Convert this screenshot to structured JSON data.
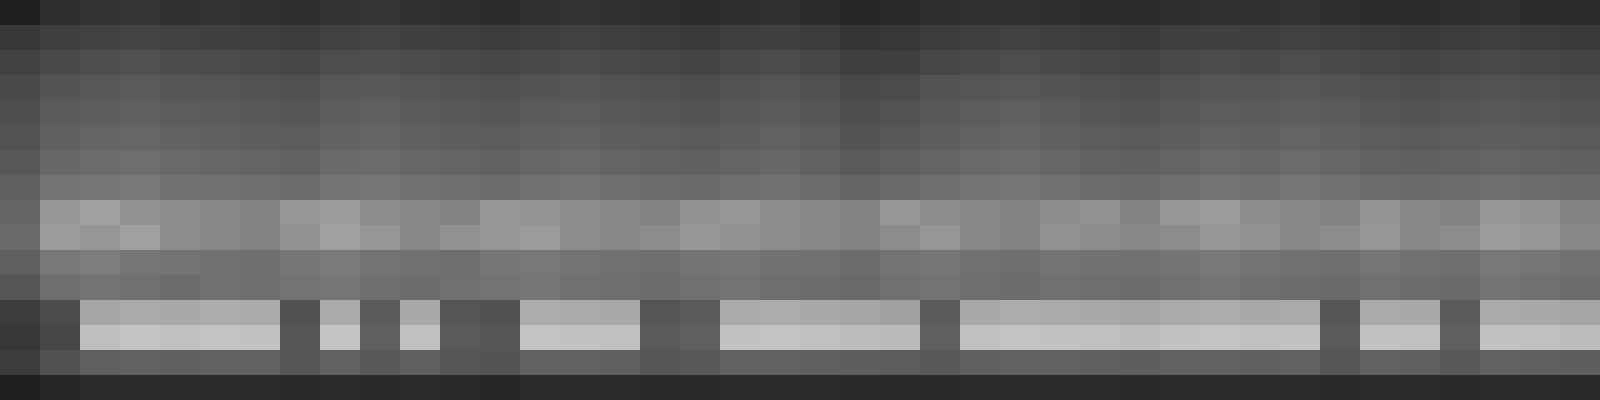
{
  "chart_data": {
    "type": "heatmap",
    "tick_labels": false,
    "value_range": [
      0,
      255
    ],
    "cells": [
      [
        30,
        45,
        50,
        52,
        48,
        50,
        47,
        45,
        50,
        52,
        49,
        46,
        44,
        48,
        50,
        47,
        45,
        43,
        46,
        49,
        44,
        38,
        40,
        45,
        47,
        49,
        46,
        44,
        42,
        45,
        47,
        48,
        50,
        46,
        44,
        43,
        45,
        47,
        44,
        42
      ],
      [
        55,
        62,
        66,
        68,
        65,
        64,
        62,
        60,
        66,
        68,
        64,
        62,
        60,
        63,
        65,
        62,
        60,
        58,
        62,
        64,
        60,
        52,
        55,
        60,
        63,
        66,
        62,
        60,
        58,
        62,
        64,
        63,
        66,
        62,
        60,
        58,
        60,
        62,
        60,
        58
      ],
      [
        65,
        74,
        78,
        80,
        76,
        75,
        72,
        70,
        77,
        79,
        75,
        72,
        70,
        74,
        76,
        72,
        70,
        68,
        72,
        75,
        70,
        62,
        64,
        70,
        74,
        77,
        73,
        70,
        68,
        72,
        75,
        74,
        77,
        73,
        70,
        68,
        70,
        72,
        70,
        68
      ],
      [
        72,
        84,
        88,
        90,
        86,
        85,
        82,
        80,
        87,
        89,
        85,
        82,
        80,
        84,
        86,
        82,
        80,
        78,
        82,
        85,
        80,
        72,
        75,
        82,
        85,
        88,
        84,
        80,
        78,
        82,
        86,
        85,
        88,
        84,
        80,
        78,
        80,
        82,
        80,
        78
      ],
      [
        78,
        90,
        94,
        96,
        92,
        90,
        88,
        86,
        93,
        95,
        90,
        88,
        86,
        90,
        92,
        88,
        86,
        84,
        88,
        91,
        86,
        78,
        82,
        88,
        92,
        95,
        90,
        86,
        84,
        88,
        92,
        90,
        94,
        90,
        86,
        84,
        86,
        88,
        86,
        84
      ],
      [
        82,
        96,
        100,
        102,
        98,
        96,
        94,
        92,
        99,
        101,
        96,
        94,
        92,
        96,
        98,
        94,
        92,
        90,
        94,
        97,
        92,
        84,
        88,
        94,
        98,
        101,
        96,
        92,
        90,
        94,
        98,
        96,
        100,
        96,
        92,
        90,
        92,
        94,
        92,
        90
      ],
      [
        88,
        104,
        108,
        110,
        105,
        103,
        100,
        98,
        106,
        108,
        103,
        100,
        98,
        103,
        105,
        100,
        98,
        96,
        100,
        104,
        98,
        90,
        95,
        100,
        105,
        108,
        103,
        98,
        96,
        100,
        105,
        103,
        107,
        103,
        98,
        96,
        98,
        100,
        98,
        96
      ],
      [
        95,
        115,
        118,
        120,
        114,
        112,
        110,
        108,
        116,
        118,
        112,
        110,
        108,
        112,
        115,
        110,
        108,
        105,
        110,
        114,
        108,
        100,
        105,
        110,
        115,
        118,
        112,
        108,
        105,
        110,
        115,
        113,
        117,
        112,
        108,
        105,
        108,
        110,
        108,
        105
      ],
      [
        100,
        150,
        160,
        145,
        140,
        135,
        130,
        150,
        155,
        140,
        135,
        130,
        150,
        148,
        140,
        135,
        130,
        145,
        150,
        140,
        135,
        130,
        150,
        140,
        135,
        130,
        140,
        145,
        130,
        150,
        155,
        140,
        135,
        130,
        148,
        135,
        130,
        150,
        145,
        130
      ],
      [
        105,
        155,
        150,
        160,
        140,
        135,
        130,
        145,
        160,
        150,
        135,
        145,
        150,
        155,
        140,
        135,
        140,
        150,
        145,
        140,
        135,
        130,
        140,
        150,
        135,
        130,
        145,
        140,
        135,
        140,
        150,
        145,
        135,
        140,
        150,
        135,
        140,
        155,
        150,
        135
      ],
      [
        95,
        120,
        125,
        118,
        115,
        112,
        110,
        118,
        122,
        115,
        112,
        110,
        118,
        120,
        115,
        112,
        110,
        116,
        118,
        114,
        112,
        108,
        115,
        118,
        112,
        110,
        116,
        114,
        112,
        116,
        120,
        115,
        112,
        110,
        118,
        112,
        110,
        120,
        118,
        112
      ],
      [
        85,
        110,
        115,
        112,
        108,
        112,
        110,
        115,
        118,
        110,
        108,
        112,
        115,
        118,
        112,
        110,
        108,
        112,
        115,
        110,
        108,
        105,
        112,
        115,
        110,
        108,
        112,
        110,
        108,
        112,
        115,
        110,
        108,
        106,
        112,
        108,
        106,
        115,
        112,
        108
      ],
      [
        60,
        75,
        165,
        170,
        168,
        172,
        170,
        80,
        170,
        90,
        168,
        85,
        80,
        172,
        170,
        168,
        85,
        90,
        170,
        172,
        168,
        165,
        160,
        90,
        168,
        172,
        170,
        168,
        165,
        170,
        172,
        168,
        170,
        85,
        170,
        168,
        90,
        170,
        168,
        165
      ],
      [
        55,
        70,
        190,
        195,
        192,
        196,
        194,
        85,
        195,
        95,
        192,
        90,
        85,
        196,
        194,
        192,
        90,
        95,
        194,
        196,
        192,
        188,
        185,
        95,
        192,
        196,
        194,
        192,
        188,
        194,
        196,
        192,
        194,
        90,
        194,
        192,
        95,
        194,
        192,
        188
      ],
      [
        60,
        80,
        95,
        98,
        96,
        98,
        97,
        85,
        98,
        88,
        96,
        86,
        84,
        98,
        97,
        96,
        86,
        88,
        97,
        98,
        96,
        94,
        92,
        88,
        96,
        98,
        97,
        96,
        94,
        97,
        98,
        96,
        97,
        86,
        97,
        96,
        88,
        97,
        96,
        94
      ],
      [
        30,
        38,
        42,
        44,
        42,
        44,
        43,
        40,
        44,
        41,
        42,
        40,
        39,
        44,
        43,
        42,
        40,
        41,
        43,
        44,
        42,
        41,
        40,
        41,
        42,
        44,
        43,
        42,
        41,
        43,
        44,
        42,
        43,
        40,
        43,
        42,
        41,
        43,
        42,
        40
      ]
    ]
  }
}
